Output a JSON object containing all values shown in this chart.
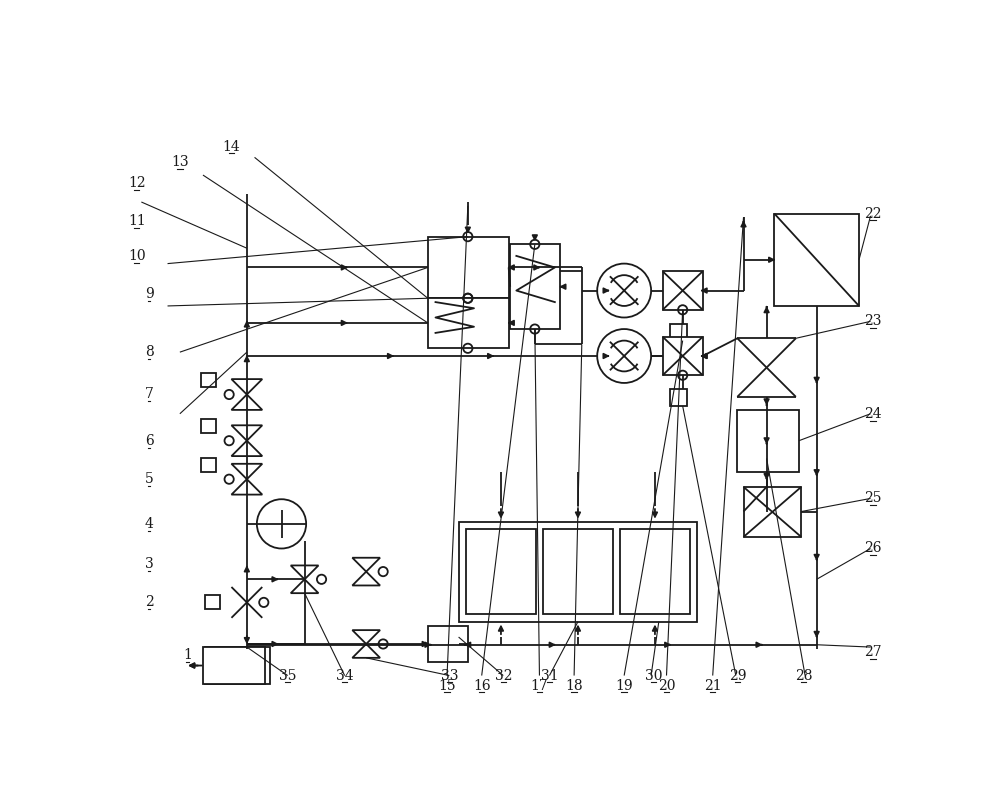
{
  "bg_color": "#ffffff",
  "lc": "#1a1a1a",
  "lw": 1.3
}
